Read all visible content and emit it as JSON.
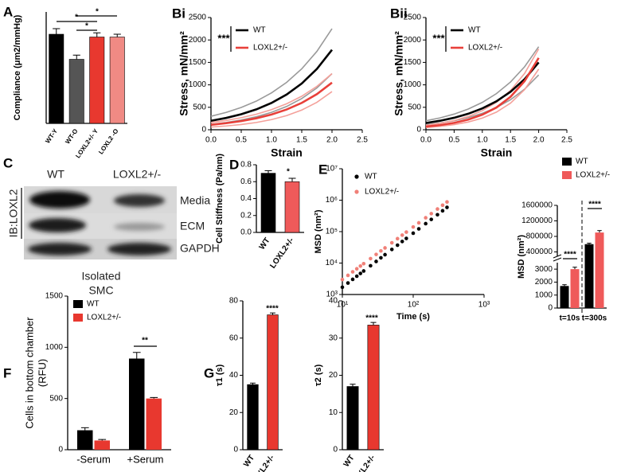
{
  "blot": {
    "label": "C",
    "columns": [
      "WT",
      "LOXL2+/-"
    ],
    "rows": [
      "Media",
      "ECM",
      "GAPDH"
    ],
    "ylabel": "IB:LOXL2",
    "caption": [
      "Isolated",
      "SMC"
    ]
  },
  "chart_data": [
    {
      "type": "bar",
      "label": "A",
      "ylabel": "Compliance (μm2/mmHg)",
      "categories": [
        "WT-Y",
        "WT-O",
        "LOXL2+/- Y",
        "LOXL2 -O"
      ],
      "values": [
        3200,
        2300,
        3100,
        3100
      ],
      "errors": [
        200,
        150,
        150,
        100
      ],
      "colors": [
        "#000000",
        "#555555",
        "#e8382f",
        "#f08a84"
      ],
      "ylim": [
        0,
        4000
      ],
      "annotations": [
        "*",
        "*",
        "*"
      ]
    },
    {
      "type": "line",
      "label": "Bi",
      "xlabel": "Strain",
      "ylabel": "Stress, mN/mm²",
      "x": [
        0,
        0.25,
        0.5,
        0.75,
        1,
        1.25,
        1.5,
        1.75,
        2
      ],
      "series": [
        {
          "color": "#9a9a9a",
          "values": [
            300,
            386,
            496,
            638,
            821,
            1055,
            1357,
            1745,
            2250
          ]
        },
        {
          "color": "#9a9a9a",
          "values": [
            120,
            161,
            216,
            289,
            387,
            518,
            695,
            931,
            1250
          ]
        },
        {
          "color": "#f4a09a",
          "values": [
            160,
            207,
            268,
            346,
            447,
            578,
            747,
            966,
            1250
          ]
        },
        {
          "color": "#f4a09a",
          "values": [
            60,
            84,
            116,
            162,
            226,
            315,
            439,
            611,
            850
          ]
        },
        {
          "name": "WT",
          "color": "#000000",
          "values": [
            200,
            263,
            345,
            454,
            597,
            784,
            1030,
            1354,
            1780
          ]
        },
        {
          "name": "LOXL2+/-",
          "color": "#e8403a",
          "values": [
            110,
            146,
            193,
            256,
            340,
            451,
            598,
            793,
            1050
          ]
        }
      ],
      "xlim": [
        0,
        2.5
      ],
      "xticks": [
        {
          "value": 0,
          "label": "0.0"
        },
        0.5,
        {
          "value": 1,
          "label": "1.0"
        },
        1.5,
        {
          "value": 2,
          "label": "2.0"
        },
        2.5
      ],
      "ylim": [
        0,
        2500
      ],
      "yticks": [
        0,
        500,
        1000,
        1500,
        2000,
        2500
      ],
      "annotations": [
        "***"
      ]
    },
    {
      "type": "line",
      "label": "Bii",
      "xlabel": "Strain",
      "ylabel": "Stress, mN/mm²",
      "x": [
        0,
        0.25,
        0.5,
        0.75,
        1,
        1.25,
        1.5,
        1.75,
        2
      ],
      "series": [
        {
          "color": "#9a9a9a",
          "values": [
            200,
            264,
            349,
            461,
            609,
            804,
            1062,
            1403,
            1850
          ]
        },
        {
          "color": "#9a9a9a",
          "values": [
            110,
            149,
            201,
            271,
            366,
            495,
            668,
            903,
            1220
          ]
        },
        {
          "color": "#f4a09a",
          "values": [
            100,
            144,
            206,
            296,
            424,
            609,
            874,
            1254,
            1800
          ]
        },
        {
          "color": "#f4a09a",
          "values": [
            50,
            76,
            114,
            172,
            260,
            392,
            592,
            894,
            1350
          ]
        },
        {
          "name": "WT",
          "color": "#000000",
          "values": [
            150,
            200,
            267,
            356,
            475,
            633,
            845,
            1127,
            1500
          ]
        },
        {
          "name": "LOXL2+/-",
          "color": "#e8403a",
          "values": [
            70,
            104,
            153,
            226,
            335,
            495,
            733,
            1083,
            1600
          ]
        }
      ],
      "xlim": [
        0,
        2.5
      ],
      "xticks": [
        {
          "value": 0,
          "label": "0.0"
        },
        0.5,
        {
          "value": 1,
          "label": "1.0"
        },
        1.5,
        {
          "value": 2,
          "label": "2.0"
        },
        2.5
      ],
      "ylim": [
        0,
        2500
      ],
      "yticks": [
        0,
        500,
        1000,
        1500,
        2000,
        2500
      ],
      "annotations": [
        "***"
      ]
    },
    {
      "type": "bar",
      "label": "D",
      "ylabel": "Cell Stiffness (Pa/nm)",
      "categories": [
        "WT",
        "LOXL2+/-"
      ],
      "values": [
        0.7,
        0.6
      ],
      "errors": [
        0.03,
        0.04
      ],
      "colors": [
        "#000000",
        "#ef5a5a"
      ],
      "ylim": [
        0,
        0.8
      ],
      "yticks": [
        {
          "value": 0,
          "label": "0.0"
        },
        0.2,
        0.4,
        0.6,
        0.8
      ],
      "annotations": [
        "*"
      ]
    },
    {
      "type": "scatter",
      "label": "E",
      "xlabel": "Time (s)",
      "ylabel": "MSD (nm²)",
      "log": true,
      "x": [
        10,
        12,
        14,
        16,
        18,
        20,
        25,
        30,
        35,
        40,
        50,
        60,
        70,
        80,
        100,
        120,
        150,
        180,
        220,
        260,
        300
      ],
      "series": [
        {
          "name": "WT",
          "color": "#000000",
          "values": [
            1700,
            2320,
            3030,
            3820,
            4680,
            5600,
            8210,
            11250,
            14700,
            18460,
            27100,
            37060,
            48450,
            60860,
            89250,
            122230,
            179350,
            244800,
            345100,
            459850,
            589900
          ]
        },
        {
          "name": "LOXL2+/-",
          "color": "#f08078",
          "values": [
            3000,
            4065,
            5256,
            6576,
            8010,
            9543,
            13860,
            18810,
            24330,
            30360,
            44070,
            59820,
            77400,
            96600,
            140400,
            190200,
            276000,
            374100,
            523500,
            692100,
            878700
          ]
        }
      ],
      "xlim": [
        10,
        1000
      ],
      "xticks": [
        {
          "value": 10,
          "label": "10¹"
        },
        {
          "value": 100,
          "label": "10²"
        },
        {
          "value": 1000,
          "label": "10³"
        }
      ],
      "ylim": [
        1000,
        10000000
      ],
      "yticks": [
        {
          "value": 1000,
          "label": "10³"
        },
        {
          "value": 10000,
          "label": "10⁴"
        },
        {
          "value": 100000,
          "label": "10⁵"
        },
        {
          "value": 1000000,
          "label": "10⁶"
        },
        {
          "value": 10000000,
          "label": "10⁷"
        }
      ]
    },
    {
      "type": "bar",
      "ylabel": "MSD (nm²)",
      "categories": [
        "t=10s",
        "t=300s"
      ],
      "series": [
        {
          "name": "WT",
          "color": "#000000",
          "values": [
            1700,
            600000
          ],
          "errors": [
            100,
            25000
          ]
        },
        {
          "name": "LOXL2+/-",
          "color": "#ef5a5a",
          "values": [
            3000,
            900000
          ],
          "errors": [
            150,
            50000
          ]
        }
      ],
      "ylim": [
        0,
        3500
      ],
      "yticks": [
        0,
        1000,
        2000,
        3000
      ],
      "y2lim": [
        0,
        1600000
      ],
      "y2ticks": [
        400000,
        800000,
        1200000,
        1600000
      ],
      "annotations": [
        "****",
        "****"
      ]
    },
    {
      "type": "bar",
      "label": "F",
      "ylabel": [
        "Cells in bottom chamber",
        "(RFU)"
      ],
      "categories": [
        "-Serum",
        "+Serum"
      ],
      "series": [
        {
          "name": "WT",
          "color": "#000000",
          "values": [
            190,
            890
          ],
          "errors": [
            25,
            60
          ]
        },
        {
          "name": "LOXL2+/-",
          "color": "#e8382f",
          "values": [
            90,
            500
          ],
          "errors": [
            10,
            10
          ]
        }
      ],
      "ylim": [
        0,
        1500
      ],
      "yticks": [
        0,
        500,
        1000,
        1500
      ],
      "annotations": [
        "**"
      ]
    },
    {
      "type": "bar",
      "label": "G",
      "ylabel": "τ1 (s)",
      "categories": [
        "WT",
        "LOXL2+/-"
      ],
      "values": [
        35,
        72.5
      ],
      "errors": [
        0.8,
        1
      ],
      "colors": [
        "#000000",
        "#e8382f"
      ],
      "ylim": [
        0,
        80
      ],
      "yticks": [
        0,
        20,
        40,
        60,
        80
      ],
      "annotations": [
        "****"
      ]
    },
    {
      "type": "bar",
      "ylabel": "τ2 (s)",
      "categories": [
        "WT",
        "LOXL2+/-"
      ],
      "values": [
        17,
        33.5
      ],
      "errors": [
        0.6,
        0.7
      ],
      "colors": [
        "#000000",
        "#e8382f"
      ],
      "ylim": [
        0,
        40
      ],
      "yticks": [
        0,
        10,
        20,
        30,
        40
      ],
      "annotations": [
        "****"
      ]
    }
  ]
}
